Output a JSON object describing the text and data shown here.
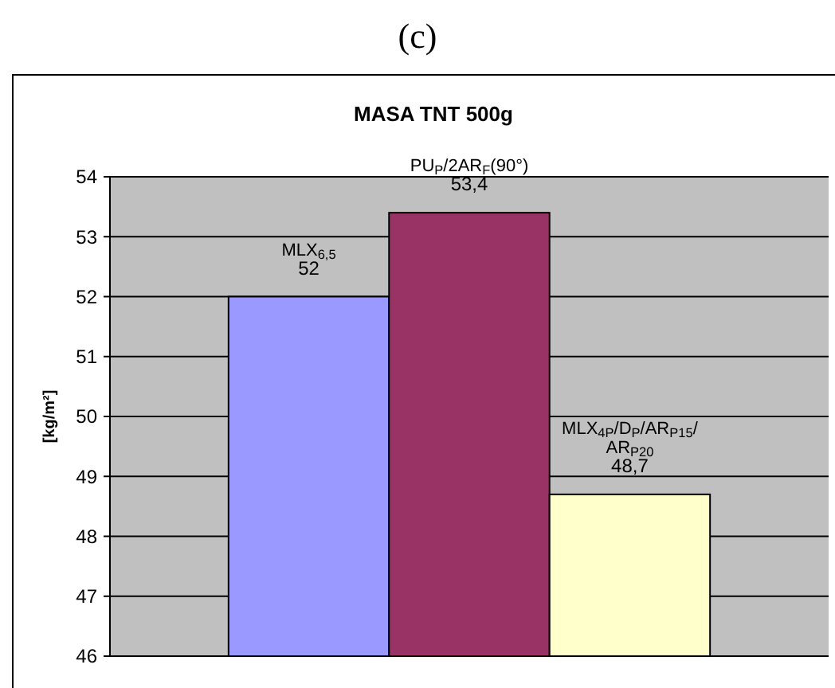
{
  "chart_data": {
    "type": "bar",
    "title": "MASA TNT 500g",
    "ylabel": "[kg/m²]",
    "annotations": [
      "(c)"
    ],
    "categories": [
      null
    ],
    "series": [
      {
        "name": "MLX$_{6,5}$",
        "color": "#9999ff",
        "values": [
          52
        ],
        "value_labels": [
          "52"
        ]
      },
      {
        "name": "PU$_{P}$/2AR$_{F}$(90°)",
        "color": "#993366",
        "values": [
          53.4
        ],
        "value_labels": [
          "53,4"
        ]
      },
      {
        "name": "MLX$_{4P}$/D$_{P}$/AR$_{P15}$/AR$_{P20}$",
        "color": "#ffffcc",
        "values": [
          48.7
        ],
        "value_labels": [
          "48,7"
        ]
      }
    ],
    "ylim": [
      46,
      54
    ],
    "yticks": [
      46,
      47,
      48,
      49,
      50,
      51,
      52,
      53,
      54
    ],
    "grid": "y"
  }
}
